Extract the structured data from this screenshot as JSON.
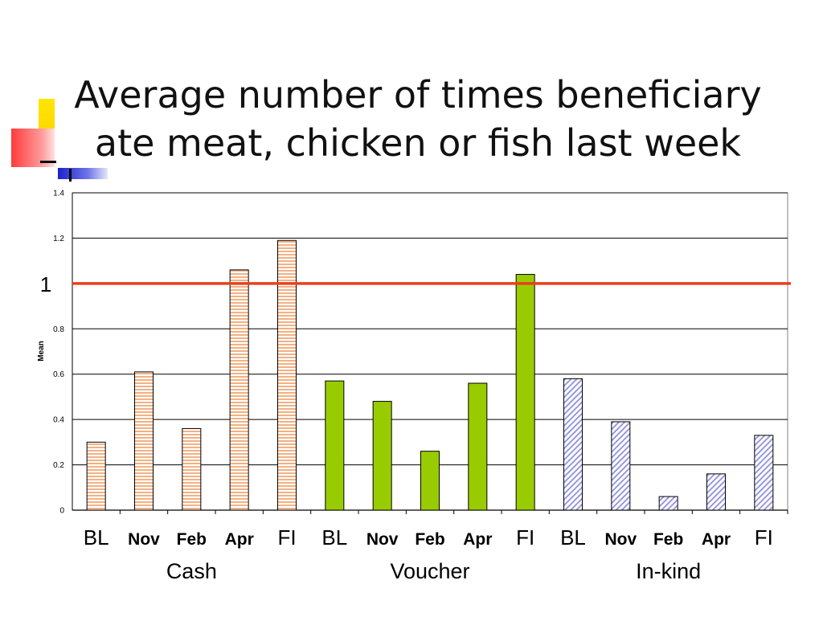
{
  "slide": {
    "title_line1": "Average number of times beneficiary",
    "title_line2": "ate meat, chicken or fish last week"
  },
  "chart_data": {
    "type": "bar",
    "title": "Average number of times beneficiary ate meat, chicken or fish last week",
    "ylabel": "Mean",
    "ylim": [
      0,
      1.4
    ],
    "yticks": [
      "0",
      "0.2",
      "0.4",
      "0.6",
      "0.8",
      "1",
      "1.2",
      "1.4"
    ],
    "categories": [
      "BL",
      "Nov",
      "Feb",
      "Apr",
      "FI",
      "BL",
      "Nov",
      "Feb",
      "Apr",
      "FI",
      "BL",
      "Nov",
      "Feb",
      "Apr",
      "FI"
    ],
    "groups": [
      {
        "name": "Cash",
        "values": [
          0.3,
          0.61,
          0.36,
          1.06,
          1.19
        ],
        "color": "#f4b183",
        "pattern": "horizontal-stripes"
      },
      {
        "name": "Voucher",
        "values": [
          0.57,
          0.48,
          0.26,
          0.56,
          1.04
        ],
        "color": "#99cc00",
        "pattern": "solid"
      },
      {
        "name": "In-kind",
        "values": [
          0.58,
          0.39,
          0.06,
          0.16,
          0.33
        ],
        "color": "#9999dd",
        "pattern": "diagonal-hatch"
      }
    ],
    "reference_line": {
      "value": 1,
      "label": "1",
      "color": "#e8401c"
    },
    "grid": true
  }
}
